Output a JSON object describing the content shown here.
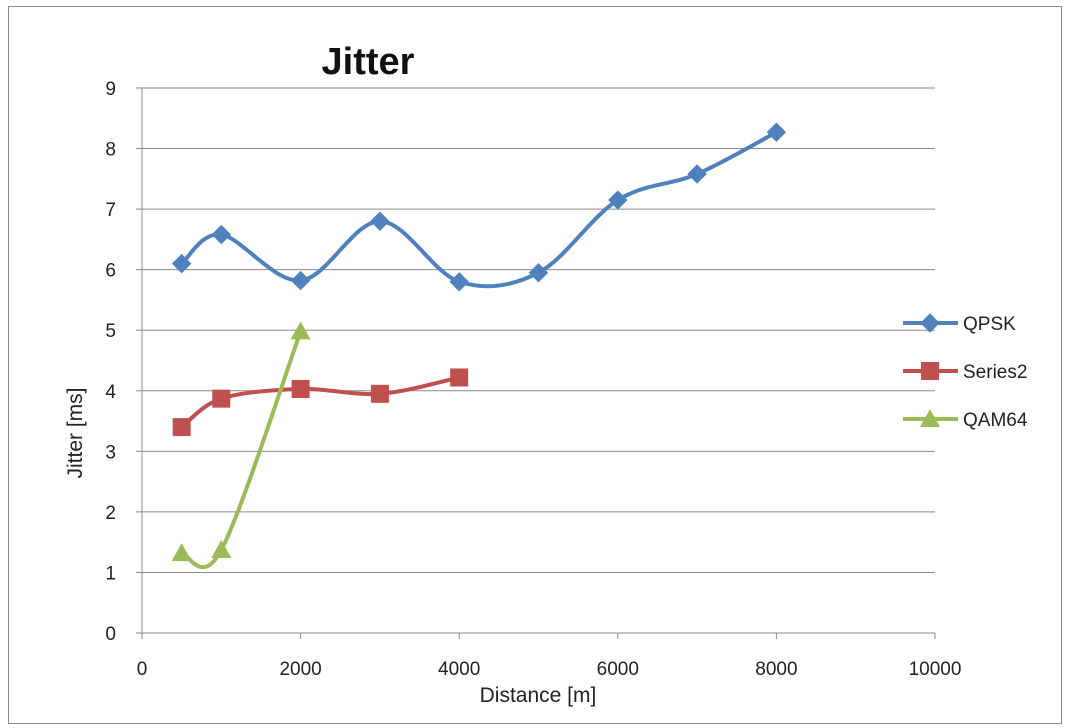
{
  "chart_data": {
    "type": "line",
    "title": "Jitter",
    "xlabel": "Distance [m]",
    "ylabel": "Jitter [ms]",
    "xlim": [
      0,
      10000
    ],
    "ylim": [
      0,
      9
    ],
    "xticks": [
      0,
      2000,
      4000,
      6000,
      8000,
      10000
    ],
    "yticks": [
      0,
      1,
      2,
      3,
      4,
      5,
      6,
      7,
      8,
      9
    ],
    "grid": "horizontal",
    "legend_position": "right",
    "series": [
      {
        "name": "QPSK",
        "color": "#4f81bd",
        "marker": "diamond",
        "smooth": true,
        "x": [
          500,
          1000,
          2000,
          3000,
          4000,
          5000,
          6000,
          7000,
          8000
        ],
        "y": [
          6.1,
          6.58,
          5.82,
          6.8,
          5.8,
          5.95,
          7.15,
          7.58,
          8.27
        ]
      },
      {
        "name": "Series2",
        "color": "#c0504d",
        "marker": "square",
        "smooth": true,
        "x": [
          500,
          1000,
          2000,
          3000,
          4000
        ],
        "y": [
          3.4,
          3.87,
          4.03,
          3.95,
          4.22
        ]
      },
      {
        "name": "QAM64",
        "color": "#9bbb59",
        "marker": "triangle",
        "smooth": true,
        "x": [
          500,
          1000,
          2000
        ],
        "y": [
          1.32,
          1.37,
          4.98
        ]
      }
    ]
  }
}
